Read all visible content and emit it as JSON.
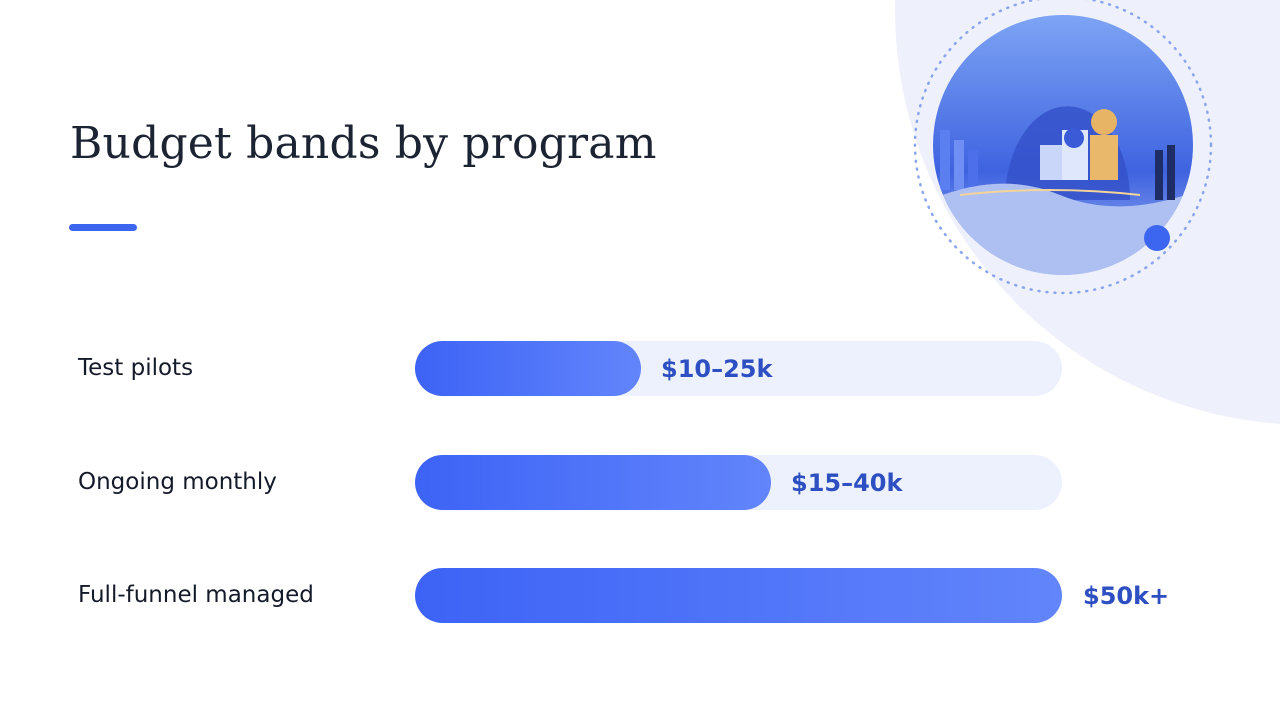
{
  "header": {
    "title": "Budget bands by program"
  },
  "rows": [
    {
      "label": "Test pilots",
      "value": "$10–25k"
    },
    {
      "label": "Ongoing monthly",
      "value": "$15–40k"
    },
    {
      "label": "Full-funnel managed",
      "value": "$50k+"
    }
  ]
}
